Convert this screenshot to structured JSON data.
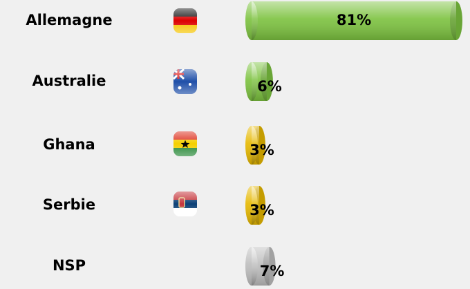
{
  "chart_data": {
    "type": "bar",
    "orientation": "horizontal",
    "categories": [
      "Allemagne",
      "Australie",
      "Ghana",
      "Serbie",
      "NSP"
    ],
    "values": [
      81,
      6,
      3,
      3,
      7
    ],
    "value_labels": [
      "81%",
      "6%",
      "3%",
      "3%",
      "7%"
    ],
    "colors": [
      "#7cc23f",
      "#7cc23f",
      "#e6b800",
      "#e6b800",
      "#bdbdbd"
    ]
  }
}
